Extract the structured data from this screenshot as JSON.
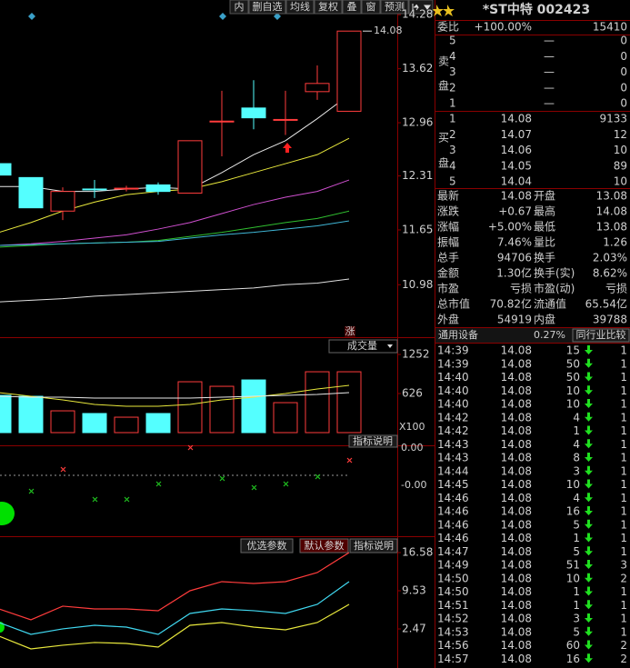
{
  "toolbar": [
    "内",
    "删自选",
    "均线",
    "复权",
    "叠",
    "窗",
    "预测"
  ],
  "kline": {
    "type": "candlestick",
    "ylim": [
      10.35,
      14.46
    ],
    "yticks": [
      14.28,
      13.62,
      12.96,
      12.31,
      11.65,
      10.98
    ],
    "max_marker": 14.08,
    "badge": "涨",
    "up_color": "#ff3c3c",
    "down_color": "#54ffff",
    "candles": {
      "open": [
        12.46,
        12.29,
        11.88,
        12.15,
        12.15,
        12.2,
        12.1,
        12.97,
        13.14,
        13.0,
        13.34,
        13.1
      ],
      "high": [
        12.46,
        12.29,
        12.17,
        12.26,
        12.19,
        12.23,
        12.74,
        13.35,
        13.48,
        13.35,
        13.66,
        14.08
      ],
      "low": [
        12.32,
        11.92,
        11.77,
        12.04,
        12.12,
        12.08,
        12.1,
        12.55,
        12.88,
        12.81,
        13.24,
        13.1
      ],
      "close": [
        12.32,
        11.92,
        12.12,
        12.14,
        12.16,
        12.12,
        12.74,
        12.98,
        13.02,
        13.0,
        13.44,
        14.08
      ]
    },
    "ma": [
      {
        "color": "#e8e8e8",
        "values": [
          12.18,
          12.18,
          12.12,
          12.12,
          12.15,
          12.17,
          12.15,
          12.35,
          12.57,
          12.74,
          13.01,
          13.3
        ]
      },
      {
        "color": "#e8e83c",
        "values": [
          11.62,
          11.74,
          11.88,
          11.99,
          12.08,
          12.12,
          12.15,
          12.24,
          12.35,
          12.46,
          12.57,
          12.77
        ]
      },
      {
        "color": "#d050d0",
        "values": [
          11.46,
          11.48,
          11.51,
          11.55,
          11.59,
          11.66,
          11.74,
          11.85,
          11.96,
          12.05,
          12.12,
          12.26
        ]
      },
      {
        "color": "#30c030",
        "values": [
          11.44,
          11.46,
          11.48,
          11.49,
          11.5,
          11.52,
          11.57,
          11.62,
          11.68,
          11.74,
          11.79,
          11.88
        ]
      },
      {
        "color": "#40b8d8",
        "values": [
          11.46,
          11.47,
          11.48,
          11.49,
          11.5,
          11.51,
          11.55,
          11.59,
          11.62,
          11.66,
          11.7,
          11.76
        ]
      },
      {
        "color": "#e0e0e0",
        "values": [
          10.77,
          10.79,
          10.81,
          10.84,
          10.86,
          10.88,
          10.9,
          10.92,
          10.94,
          10.98,
          11.0,
          11.05
        ]
      }
    ]
  },
  "volume": {
    "type": "bar",
    "button": "成交量",
    "help": "指标说明",
    "unit": "X100",
    "ylim": [
      0,
      1398
    ],
    "yticks": [
      1252,
      626
    ],
    "values": [
      597,
      582,
      349,
      306,
      247,
      306,
      815,
      742,
      844,
      480,
      975,
      975
    ],
    "ma": [
      {
        "color": "#e8e83c",
        "values": [
          641,
          582,
          524,
          451,
          422,
          422,
          451,
          524,
          568,
          626,
          699,
          757
        ]
      },
      {
        "color": "#e8e8e8",
        "values": [
          582,
          568,
          568,
          553,
          553,
          553,
          553,
          568,
          582,
          597,
          611,
          641
        ]
      }
    ]
  },
  "indicator": {
    "help": "指标说明",
    "labels": [
      "0.00",
      "-0.00"
    ]
  },
  "oscillator": {
    "type": "line",
    "buttons": [
      "优选参数",
      "默认参数",
      "指标说明"
    ],
    "ylim": [
      -4.75,
      19.27
    ],
    "yticks": [
      16.58,
      9.53,
      2.47
    ],
    "series": [
      {
        "color": "#ff3c3c",
        "values": [
          6.17,
          4.16,
          6.68,
          6.17,
          6.17,
          5.84,
          9.53,
          11.21,
          10.87,
          11.21,
          12.89,
          16.58
        ]
      },
      {
        "color": "#40d8f0",
        "values": [
          3.65,
          1.47,
          2.48,
          3.15,
          2.81,
          1.47,
          5.33,
          6.17,
          5.84,
          5.33,
          7.01,
          11.21
        ]
      },
      {
        "color": "#e8e83c",
        "values": [
          1.14,
          -1.22,
          -0.54,
          -0.04,
          -0.21,
          -0.88,
          3.15,
          3.65,
          2.81,
          2.31,
          3.65,
          7.01
        ]
      }
    ]
  },
  "quote": {
    "title": "*ST中特 002423",
    "ratio": [
      "委比",
      "+100.00%",
      "15410"
    ],
    "sell_label": [
      "卖",
      "盘"
    ],
    "sell": [
      [
        "5",
        "—",
        "0"
      ],
      [
        "4",
        "—",
        "0"
      ],
      [
        "3",
        "—",
        "0"
      ],
      [
        "2",
        "—",
        "0"
      ],
      [
        "1",
        "—",
        "0"
      ]
    ],
    "buy_label": [
      "买",
      "盘"
    ],
    "buy": [
      [
        "1",
        "14.08",
        "9133"
      ],
      [
        "2",
        "14.07",
        "12"
      ],
      [
        "3",
        "14.06",
        "10"
      ],
      [
        "4",
        "14.05",
        "89"
      ],
      [
        "5",
        "14.04",
        "10"
      ]
    ],
    "stats": [
      [
        "最新",
        "14.08",
        "开盘",
        "13.08"
      ],
      [
        "涨跌",
        "+0.67",
        "最高",
        "14.08"
      ],
      [
        "涨幅",
        "+5.00%",
        "最低",
        "13.08"
      ],
      [
        "振幅",
        "7.46%",
        "量比",
        "1.26"
      ],
      [
        "总手",
        "94706",
        "换手",
        "2.03%"
      ],
      [
        "金额",
        "1.30亿",
        "换手(实)",
        "8.62%"
      ],
      [
        "市盈",
        "亏损",
        "市盈(动)",
        "亏损"
      ],
      [
        "总市值",
        "70.82亿",
        "流通值",
        "65.54亿"
      ],
      [
        "外盘",
        "54919",
        "内盘",
        "39788"
      ]
    ],
    "industry": [
      "通用设备",
      "0.27%",
      "同行业比较"
    ],
    "trades": [
      [
        "14:39",
        "14.08",
        "15",
        "1"
      ],
      [
        "14:39",
        "14.08",
        "50",
        "1"
      ],
      [
        "14:40",
        "14.08",
        "50",
        "1"
      ],
      [
        "14:40",
        "14.08",
        "10",
        "1"
      ],
      [
        "14:40",
        "14.08",
        "10",
        "1"
      ],
      [
        "14:42",
        "14.08",
        "4",
        "1"
      ],
      [
        "14:42",
        "14.08",
        "1",
        "1"
      ],
      [
        "14:43",
        "14.08",
        "4",
        "1"
      ],
      [
        "14:43",
        "14.08",
        "8",
        "1"
      ],
      [
        "14:44",
        "14.08",
        "3",
        "1"
      ],
      [
        "14:45",
        "14.08",
        "10",
        "1"
      ],
      [
        "14:46",
        "14.08",
        "4",
        "1"
      ],
      [
        "14:46",
        "14.08",
        "16",
        "1"
      ],
      [
        "14:46",
        "14.08",
        "5",
        "1"
      ],
      [
        "14:46",
        "14.08",
        "1",
        "1"
      ],
      [
        "14:47",
        "14.08",
        "5",
        "1"
      ],
      [
        "14:49",
        "14.08",
        "51",
        "3"
      ],
      [
        "14:50",
        "14.08",
        "10",
        "2"
      ],
      [
        "14:50",
        "14.08",
        "1",
        "1"
      ],
      [
        "14:51",
        "14.08",
        "1",
        "1"
      ],
      [
        "14:52",
        "14.08",
        "3",
        "1"
      ],
      [
        "14:53",
        "14.08",
        "5",
        "1"
      ],
      [
        "14:56",
        "14.08",
        "60",
        "2"
      ],
      [
        "14:57",
        "14.08",
        "16",
        "2"
      ]
    ]
  }
}
